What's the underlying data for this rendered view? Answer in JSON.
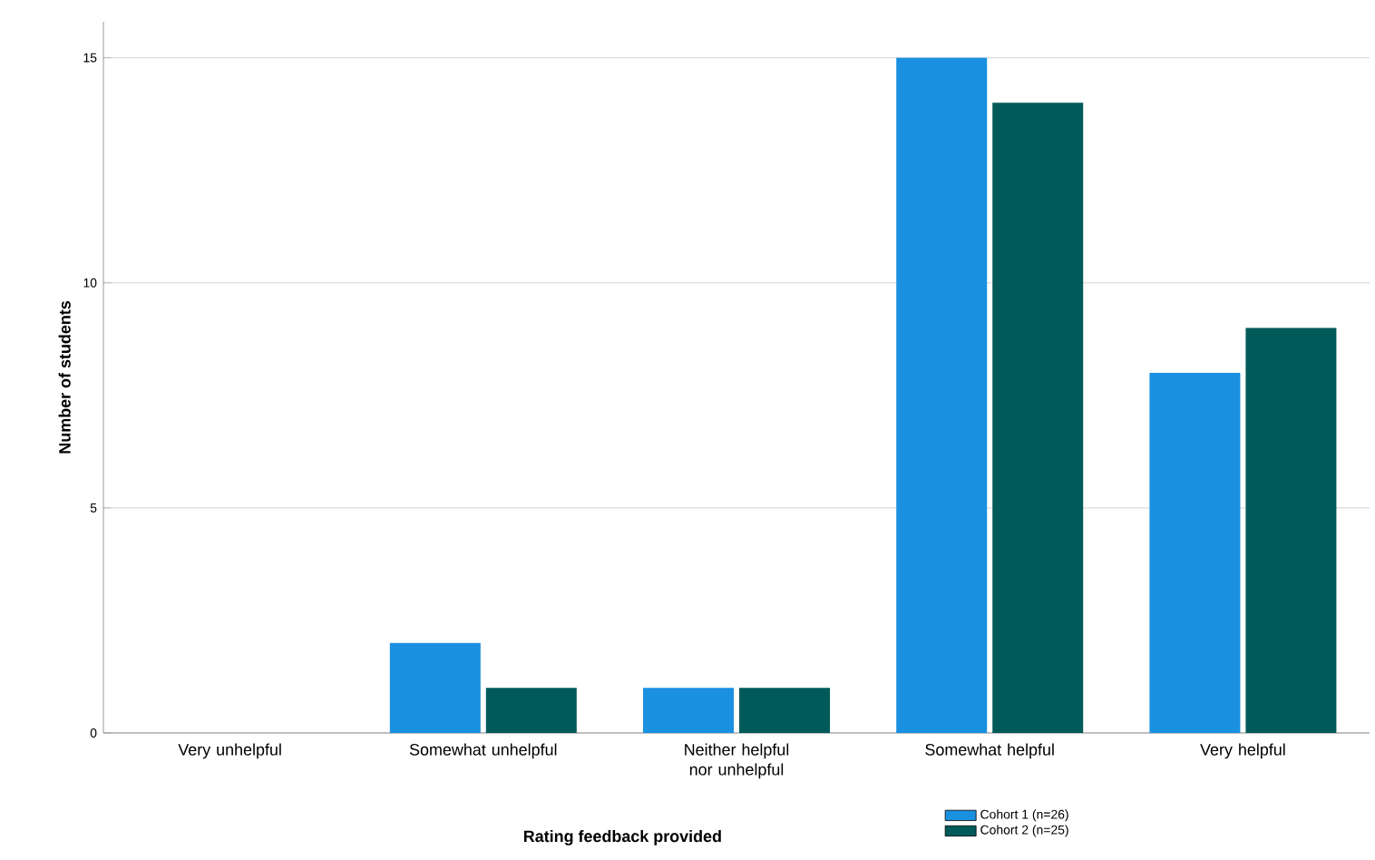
{
  "chart_data": {
    "type": "bar",
    "xlabel": "Rating feedback provided",
    "ylabel": "Number of students",
    "categories": [
      "Very unhelpful",
      "Somewhat unhelpful",
      "Neither helpful nor unhelpful",
      "Somewhat helpful",
      "Very helpful"
    ],
    "series": [
      {
        "name": "Cohort 1 (n=26)",
        "color": "#1a90e0",
        "values": [
          0,
          2,
          1,
          15,
          8
        ]
      },
      {
        "name": "Cohort 2 (n=25)",
        "color": "#005a5a",
        "values": [
          0,
          1,
          1,
          14,
          9
        ]
      }
    ],
    "ylim": [
      0,
      15.8
    ],
    "yticks": [
      0,
      5,
      10,
      15
    ],
    "grid": "y",
    "legend": "bottom right"
  }
}
